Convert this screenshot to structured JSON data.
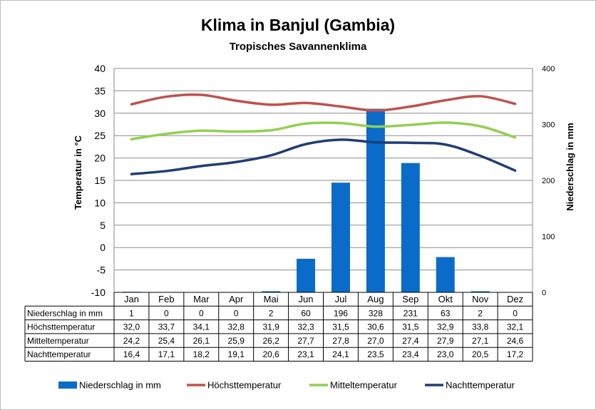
{
  "chart_data": {
    "type": "bar+line",
    "title": "Klima in Banjul (Gambia)",
    "subtitle": "Tropisches Savannenklima",
    "ylabel_left": "Temperatur in °C",
    "ylabel_right": "Niederschlag in mm",
    "ylim_left": [
      -10,
      40
    ],
    "yticks_left": [
      "40",
      "35",
      "30",
      "25",
      "20",
      "15",
      "10",
      "5",
      "0",
      "-5",
      "-10"
    ],
    "ylim_right": [
      0,
      400
    ],
    "yticks_right": [
      "400",
      "300",
      "200",
      "100",
      "0"
    ],
    "grid": true,
    "legend_position": "bottom",
    "categories": [
      "Jan",
      "Feb",
      "Mar",
      "Apr",
      "Mai",
      "Jun",
      "Jul",
      "Aug",
      "Sep",
      "Okt",
      "Nov",
      "Dez"
    ],
    "series": [
      {
        "name": "Niederschlag in mm",
        "type": "bar",
        "axis": "right",
        "color": "#0b6bc9",
        "values": [
          1,
          0,
          0,
          0,
          2,
          60,
          196,
          328,
          231,
          63,
          2,
          0
        ],
        "labels": [
          "1",
          "0",
          "0",
          "0",
          "2",
          "60",
          "196",
          "328",
          "231",
          "63",
          "2",
          "0"
        ]
      },
      {
        "name": "Höchsttemperatur",
        "type": "line",
        "axis": "left",
        "color": "#c0504d",
        "values": [
          32.0,
          33.7,
          34.1,
          32.8,
          31.9,
          32.3,
          31.5,
          30.6,
          31.5,
          32.9,
          33.8,
          32.1
        ],
        "labels": [
          "32,0",
          "33,7",
          "34,1",
          "32,8",
          "31,9",
          "32,3",
          "31,5",
          "30,6",
          "31,5",
          "32,9",
          "33,8",
          "32,1"
        ]
      },
      {
        "name": "Mitteltemperatur",
        "type": "line",
        "axis": "left",
        "color": "#92d050",
        "values": [
          24.2,
          25.4,
          26.1,
          25.9,
          26.2,
          27.7,
          27.8,
          27.0,
          27.4,
          27.9,
          27.1,
          24.6
        ],
        "labels": [
          "24,2",
          "25,4",
          "26,1",
          "25,9",
          "26,2",
          "27,7",
          "27,8",
          "27,0",
          "27,4",
          "27,9",
          "27,1",
          "24,6"
        ]
      },
      {
        "name": "Nachttemperatur",
        "type": "line",
        "axis": "left",
        "color": "#1f3d75",
        "values": [
          16.4,
          17.1,
          18.2,
          19.1,
          20.6,
          23.1,
          24.1,
          23.5,
          23.4,
          23.0,
          20.5,
          17.2
        ],
        "labels": [
          "16,4",
          "17,1",
          "18,2",
          "19,1",
          "20,6",
          "23,1",
          "24,1",
          "23,5",
          "23,4",
          "23,0",
          "20,5",
          "17,2"
        ]
      }
    ]
  }
}
